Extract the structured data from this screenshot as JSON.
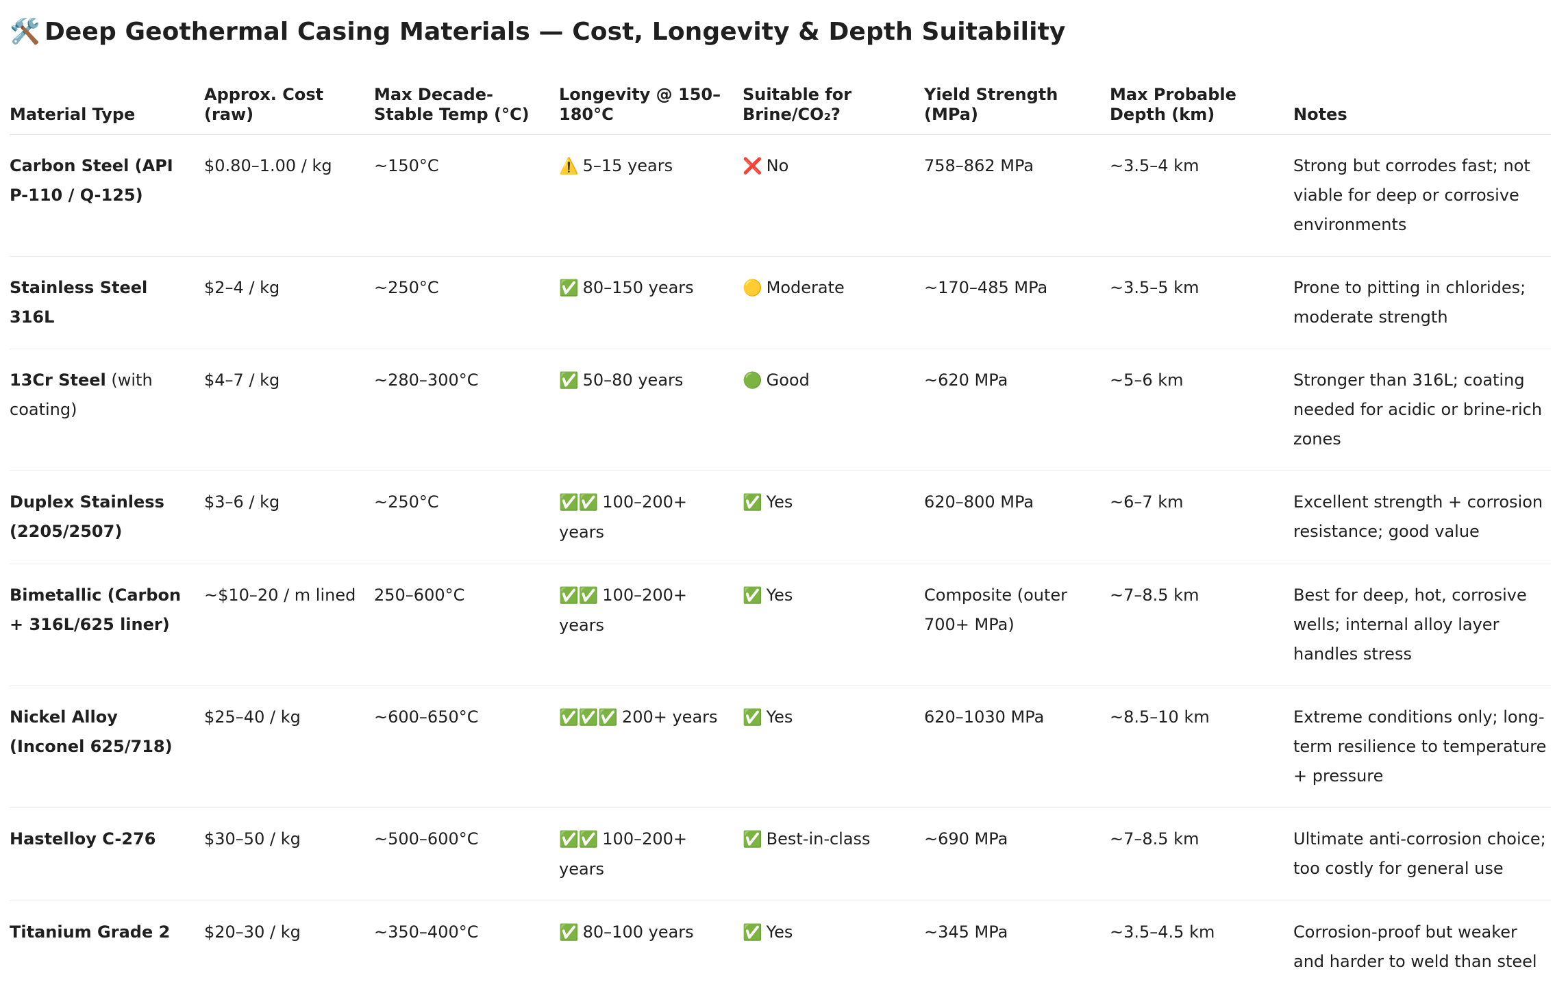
{
  "title": {
    "icon": "🛠️",
    "text": "Deep Geothermal Casing Materials — Cost, Longevity & Depth Suitability"
  },
  "table": {
    "headers": [
      "Material Type",
      "Approx. Cost (raw)",
      "Max Decade-Stable Temp (°C)",
      "Longevity @ 150–180°C",
      "Suitable for Brine/CO₂?",
      "Yield Strength (MPa)",
      "Max Probable Depth (km)",
      "Notes"
    ],
    "rows": [
      {
        "material": "Carbon Steel (API P-110 / Q-125)",
        "material_extra": "",
        "cost": "$0.80–1.00 / kg",
        "temp": "~150°C",
        "longevity_icon": "⚠️",
        "longevity": "5–15 years",
        "brine_icon": "❌",
        "brine": "No",
        "yield": "758–862 MPa",
        "depth": "~3.5–4 km",
        "notes": "Strong but corrodes fast; not viable for deep or corrosive environments"
      },
      {
        "material": "Stainless Steel 316L",
        "material_extra": "",
        "cost": "$2–4 / kg",
        "temp": "~250°C",
        "longevity_icon": "✅",
        "longevity": "80–150 years",
        "brine_icon": "🟡",
        "brine": "Moderate",
        "yield": "~170–485 MPa",
        "depth": "~3.5–5 km",
        "notes": "Prone to pitting in chlorides; moderate strength"
      },
      {
        "material": "13Cr Steel",
        "material_extra": " (with coating)",
        "cost": "$4–7 / kg",
        "temp": "~280–300°C",
        "longevity_icon": "✅",
        "longevity": "50–80 years",
        "brine_icon": "🟢",
        "brine": "Good",
        "yield": "~620 MPa",
        "depth": "~5–6 km",
        "notes": "Stronger than 316L; coating needed for acidic or brine-rich zones"
      },
      {
        "material": "Duplex Stainless (2205/2507)",
        "material_extra": "",
        "cost": "$3–6 / kg",
        "temp": "~250°C",
        "longevity_icon": "✅✅",
        "longevity": "100–200+ years",
        "brine_icon": "✅",
        "brine": "Yes",
        "yield": "620–800 MPa",
        "depth": "~6–7 km",
        "notes": "Excellent strength + corrosion resistance; good value"
      },
      {
        "material": "Bimetallic (Carbon + 316L/625 liner)",
        "material_extra": "",
        "cost": "~$10–20 / m lined",
        "temp": "250–600°C",
        "longevity_icon": "✅✅",
        "longevity": "100–200+ years",
        "brine_icon": "✅",
        "brine": "Yes",
        "yield": "Composite (outer 700+ MPa)",
        "depth": "~7–8.5 km",
        "notes": "Best for deep, hot, corrosive wells; internal alloy layer handles stress"
      },
      {
        "material": "Nickel Alloy (Inconel 625/718)",
        "material_extra": "",
        "cost": "$25–40 / kg",
        "temp": "~600–650°C",
        "longevity_icon": "✅✅✅",
        "longevity": "200+ years",
        "brine_icon": "✅",
        "brine": "Yes",
        "yield": "620–1030 MPa",
        "depth": "~8.5–10 km",
        "notes": "Extreme conditions only; long-term resilience to temperature + pressure"
      },
      {
        "material": "Hastelloy C-276",
        "material_extra": "",
        "cost": "$30–50 / kg",
        "temp": "~500–600°C",
        "longevity_icon": "✅✅",
        "longevity": "100–200+ years",
        "brine_icon": "✅",
        "brine": "Best-in-class",
        "yield": "~690 MPa",
        "depth": "~7–8.5 km",
        "notes": "Ultimate anti-corrosion choice; too costly for general use"
      },
      {
        "material": "Titanium Grade 2",
        "material_extra": "",
        "cost": "$20–30 / kg",
        "temp": "~350–400°C",
        "longevity_icon": "✅",
        "longevity": "80–100 years",
        "brine_icon": "✅",
        "brine": "Yes",
        "yield": "~345 MPa",
        "depth": "~3.5–4.5 km",
        "notes": "Corrosion-proof but weaker and harder to weld than steel"
      }
    ]
  }
}
